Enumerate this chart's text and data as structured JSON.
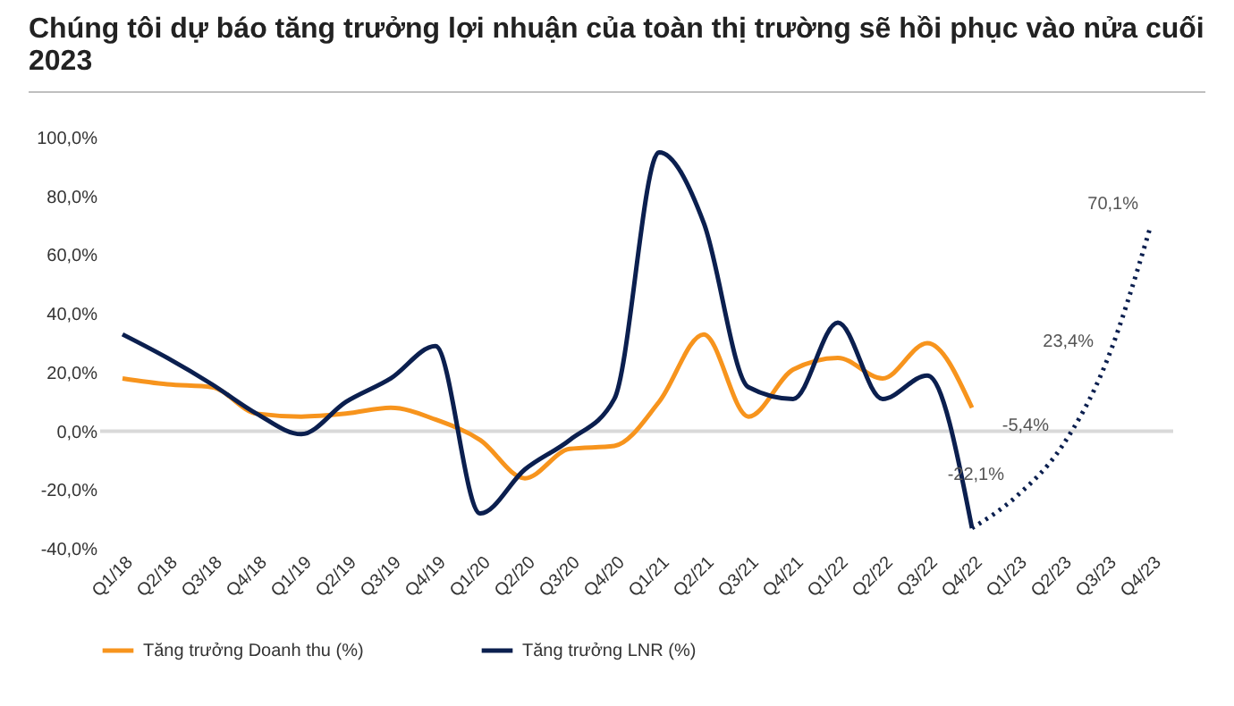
{
  "chart_data": {
    "type": "line",
    "title": "Chúng tôi dự báo tăng trưởng lợi nhuận của toàn thị trường sẽ hồi phục vào nửa cuối 2023",
    "categories": [
      "Q1/18",
      "Q2/18",
      "Q3/18",
      "Q4/18",
      "Q1/19",
      "Q2/19",
      "Q3/19",
      "Q4/19",
      "Q1/20",
      "Q2/20",
      "Q3/20",
      "Q4/20",
      "Q1/21",
      "Q2/21",
      "Q3/21",
      "Q4/21",
      "Q1/22",
      "Q2/22",
      "Q3/22",
      "Q4/22",
      "Q1/23",
      "Q2/23",
      "Q3/23",
      "Q4/23"
    ],
    "series": [
      {
        "name": "Tăng trưởng Doanh thu (%)",
        "color": "#f7941d",
        "values": [
          18,
          16,
          15,
          6,
          5,
          6,
          8,
          4,
          -3,
          -16,
          -6,
          -5,
          10,
          33,
          5,
          21,
          25,
          18,
          30,
          8,
          null,
          null,
          null,
          null
        ]
      },
      {
        "name": "Tăng trưởng LNR (%)",
        "color": "#0b1f4f",
        "values": [
          33,
          25,
          16,
          6,
          -1,
          10,
          18,
          29,
          -28,
          -13,
          -3,
          11,
          95,
          71,
          15,
          11,
          37,
          11,
          19,
          -33,
          null,
          null,
          null,
          null
        ]
      },
      {
        "color": "#0b1f4f",
        "line_style": "dotted",
        "values": [
          null,
          null,
          null,
          null,
          null,
          null,
          null,
          null,
          null,
          null,
          null,
          null,
          null,
          null,
          null,
          null,
          null,
          null,
          null,
          -33,
          -22.1,
          -5.4,
          23.4,
          70.1
        ],
        "value_labels": [
          null,
          null,
          null,
          null,
          null,
          null,
          null,
          null,
          null,
          null,
          null,
          null,
          null,
          null,
          null,
          null,
          null,
          null,
          null,
          null,
          "-22,1%",
          "-5,4%",
          "23,4%",
          "70,1%"
        ]
      }
    ],
    "ylim": [
      -40,
      100
    ],
    "yticks": [
      {
        "value": -40,
        "label": "-40,0%"
      },
      {
        "value": -20,
        "label": "-20,0%"
      },
      {
        "value": 0,
        "label": "0,0%"
      },
      {
        "value": 20,
        "label": "20,0%"
      },
      {
        "value": 40,
        "label": "40,0%"
      },
      {
        "value": 60,
        "label": "60,0%"
      },
      {
        "value": 80,
        "label": "80,0%"
      },
      {
        "value": 100,
        "label": "100,0%"
      }
    ],
    "ref_lines": [
      {
        "axis": "y",
        "value": 0,
        "color": "#d9d9d9"
      }
    ],
    "grid": false,
    "legend": "bottom"
  }
}
